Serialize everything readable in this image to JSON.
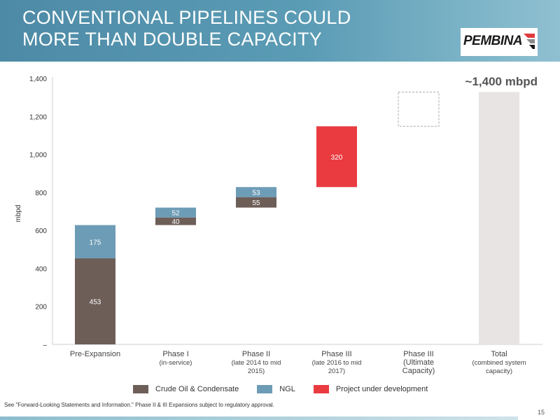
{
  "slide": {
    "title_line1": "CONVENTIONAL PIPELINES COULD",
    "title_line2": "MORE THAN DOUBLE CAPACITY",
    "logo_text": "PEMBINA",
    "footnote": "See \"Forward-Looking Statements and Information.\" Phase II & III Expansions subject to regulatory approval.",
    "page_number": "15"
  },
  "colors": {
    "crude": "#6d5e58",
    "ngl": "#6d9cb6",
    "project": "#ea3b41",
    "total": "#e7e4e3",
    "header": "#5b9cb5"
  },
  "legend": [
    {
      "label": "Crude Oil & Condensate",
      "color": "#6d5e58"
    },
    {
      "label": "NGL",
      "color": "#6d9cb6"
    },
    {
      "label": "Project under development",
      "color": "#ea3b41"
    }
  ],
  "chart_data": {
    "type": "bar",
    "subtype": "waterfall-stacked",
    "ylabel": "mbpd",
    "ylim": [
      0,
      1400
    ],
    "yticks": [
      0,
      200,
      400,
      600,
      800,
      1000,
      1200,
      1400
    ],
    "ytick_labels": [
      "–",
      "200",
      "400",
      "600",
      "800",
      "1,000",
      "1,200",
      "1,400"
    ],
    "annotation": "~1,400 mbpd",
    "categories": [
      {
        "line1": "Pre-Expansion",
        "line2": ""
      },
      {
        "line1": "Phase I",
        "line2": "(in-service)"
      },
      {
        "line1": "Phase II",
        "line2": "(late 2014 to mid 2015)"
      },
      {
        "line1": "Phase III",
        "line2": "(late 2016 to mid 2017)"
      },
      {
        "line1": "Phase III (Ultimate Capacity)",
        "line2": ""
      },
      {
        "line1": "Total",
        "line2": "(combined system capacity)"
      }
    ],
    "segments": [
      {
        "category": 0,
        "series": "Crude Oil & Condensate",
        "base": 0,
        "value": 453,
        "label": "453",
        "style": "crude"
      },
      {
        "category": 0,
        "series": "NGL",
        "base": 453,
        "value": 175,
        "label": "175",
        "style": "ngl"
      },
      {
        "category": 1,
        "series": "Crude Oil & Condensate",
        "base": 628,
        "value": 40,
        "label": "40",
        "style": "crude"
      },
      {
        "category": 1,
        "series": "NGL",
        "base": 668,
        "value": 52,
        "label": "52",
        "style": "ngl"
      },
      {
        "category": 2,
        "series": "Crude Oil & Condensate",
        "base": 720,
        "value": 55,
        "label": "55",
        "style": "crude"
      },
      {
        "category": 2,
        "series": "NGL",
        "base": 775,
        "value": 53,
        "label": "53",
        "style": "ngl"
      },
      {
        "category": 3,
        "series": "Project under development",
        "base": 828,
        "value": 320,
        "label": "320",
        "style": "project"
      },
      {
        "category": 4,
        "series": "",
        "base": 1148,
        "value": 180,
        "label": "",
        "style": "dashed"
      },
      {
        "category": 5,
        "series": "",
        "base": 0,
        "value": 1328,
        "label": "",
        "style": "total"
      }
    ]
  }
}
